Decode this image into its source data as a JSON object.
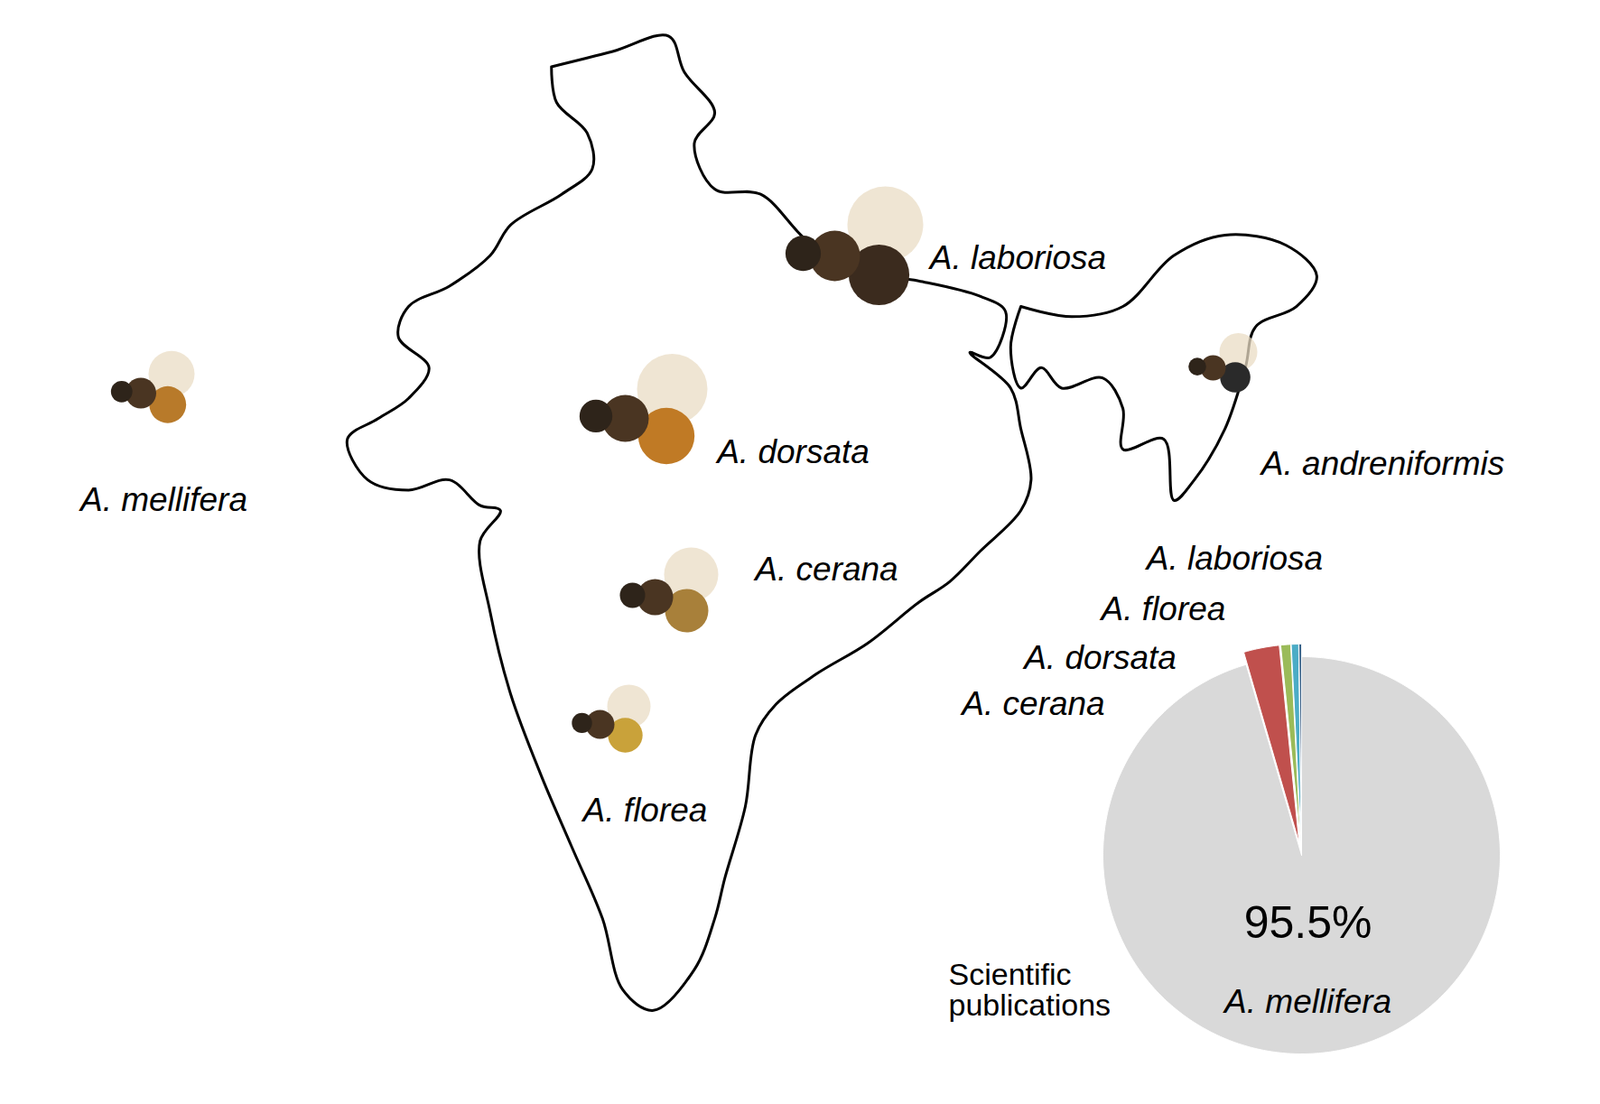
{
  "chart_data": {
    "type": "pie",
    "title": "Scientific publications",
    "categories": [
      "A. mellifera",
      "A. cerana",
      "A. dorsata",
      "A. florea",
      "A. laboriosa"
    ],
    "values": [
      95.5,
      2.9,
      0.8,
      0.6,
      0.2
    ],
    "colors": [
      "#d9d9d9",
      "#c0504d",
      "#9bbb59",
      "#4bacc6",
      "#1f4e79"
    ],
    "value_labels": [
      "95.5%",
      null,
      null,
      null,
      null
    ],
    "data_labels": true
  },
  "map": {
    "species": [
      "A. mellifera",
      "A. laboriosa",
      "A. dorsata",
      "A. cerana",
      "A. florea",
      "A. andreniformis"
    ]
  }
}
